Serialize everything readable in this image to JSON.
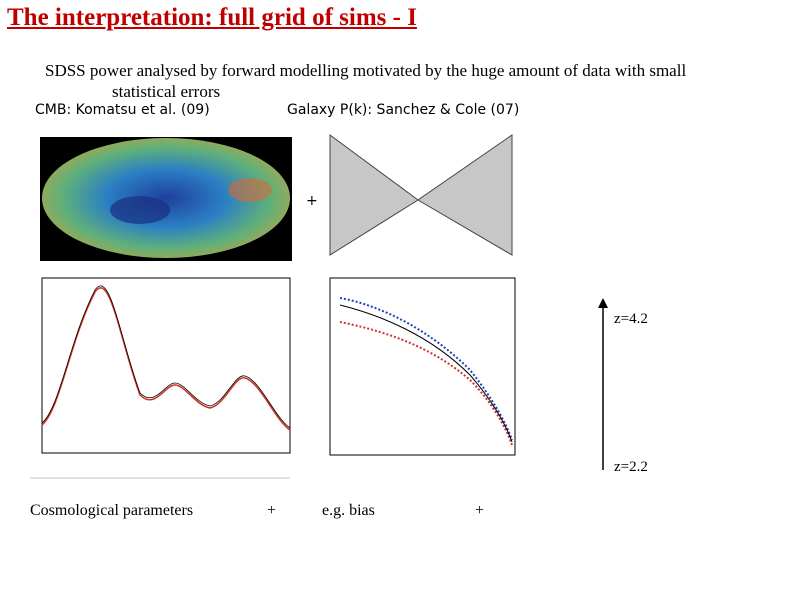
{
  "header": {
    "title": "The interpretation: full grid of sims - I"
  },
  "body": {
    "text": "SDSS power analysed by forward modelling motivated by the huge amount of data with small statistical errors",
    "credits": [
      "CMB: Komatsu et al.  (09)",
      "Galaxy P(k): Sanchez & Cole (07)"
    ]
  },
  "figure": {
    "plus": "+",
    "redshift_labels": [
      "z=4.2",
      "z=2.2"
    ]
  },
  "footer": {
    "items": [
      "Cosmological parameters",
      "+",
      "e.g. bias",
      "+"
    ]
  }
}
